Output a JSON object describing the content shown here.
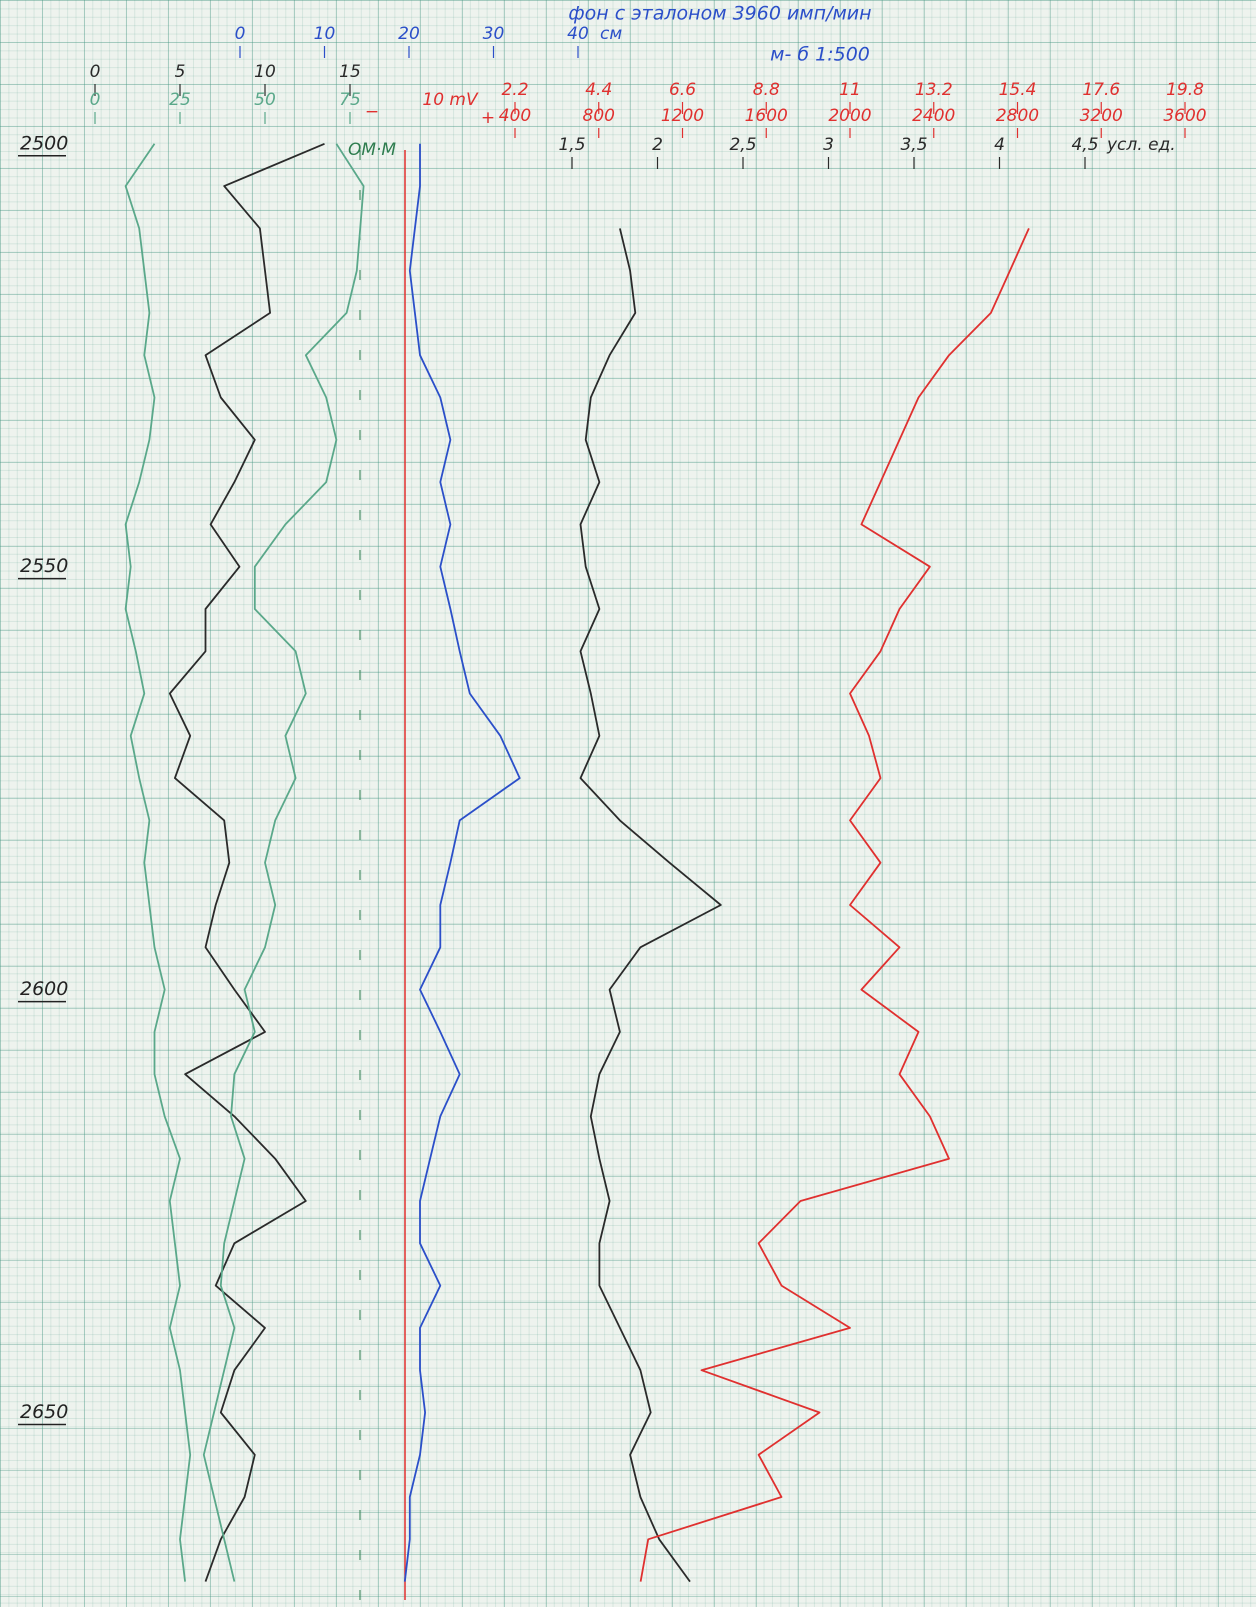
{
  "chart_data": {
    "type": "well-log",
    "title": "фон с эталоном 3960 имп/мин",
    "subtitle": "м- б 1:500",
    "annotations": [
      "10 mV",
      "−",
      "+",
      "ОМ·М"
    ],
    "depths": [
      2500,
      2505,
      2510,
      2515,
      2520,
      2525,
      2530,
      2535,
      2540,
      2545,
      2550,
      2555,
      2560,
      2565,
      2570,
      2575,
      2580,
      2585,
      2590,
      2595,
      2600,
      2605,
      2610,
      2615,
      2620,
      2625,
      2630,
      2635,
      2640,
      2645,
      2650,
      2655,
      2660,
      2665,
      2670
    ],
    "ylim": [
      2483,
      2673
    ],
    "yticks": [
      2500,
      2550,
      2600,
      2650
    ],
    "grid": true,
    "tracks": [
      {
        "xlim": [
          0,
          15
        ],
        "xticks": [
          0,
          5,
          10,
          15
        ],
        "color": "#2a2a2a",
        "series": [
          {
            "color": "#5aa88a",
            "values": [
              3.5,
              1.8,
              2.6,
              2.9,
              3.2,
              2.9,
              3.5,
              3.2,
              2.6,
              1.8,
              2.1,
              1.8,
              2.4,
              2.9,
              2.1,
              2.6,
              3.2,
              2.9,
              3.2,
              3.5,
              4.1,
              3.5,
              3.5,
              4.1,
              5.0,
              4.4,
              4.7,
              5.0,
              4.4,
              5.0,
              5.3,
              5.6,
              5.3,
              5.0,
              5.3
            ]
          },
          {
            "color": "#2a2a2a",
            "values": [
              13.5,
              7.6,
              9.7,
              10.0,
              10.3,
              6.5,
              7.4,
              9.4,
              8.2,
              6.8,
              8.5,
              6.5,
              6.5,
              4.4,
              5.6,
              4.7,
              7.6,
              7.9,
              7.1,
              6.5,
              8.2,
              10.0,
              5.3,
              8.2,
              10.6,
              12.4,
              8.2,
              7.1,
              10.0,
              8.2,
              7.4,
              9.4,
              8.8,
              7.4,
              6.5
            ]
          }
        ]
      },
      {
        "xlim": [
          0,
          75
        ],
        "xticks": [
          0,
          25,
          50,
          75
        ],
        "color": "#5aa88a",
        "series": [
          {
            "color": "#5aa88a",
            "values": [
              71,
              79,
              78,
              77,
              74,
              62,
              68,
              71,
              68,
              56,
              47,
              47,
              59,
              62,
              56,
              59,
              53,
              50,
              53,
              50,
              44,
              47,
              41,
              40,
              44,
              41,
              38,
              37,
              41,
              38,
              35,
              32,
              35,
              38,
              41
            ]
          }
        ]
      },
      {
        "xlim": [
          0,
          40
        ],
        "xticks": [
          0,
          10,
          20,
          30,
          40
        ],
        "unit": "см",
        "color": "#2b4fc9",
        "series": [
          {
            "color": "#2b4fc9",
            "values": [
              21.3,
              21.3,
              20.7,
              20.1,
              20.7,
              21.3,
              23.7,
              24.9,
              23.7,
              24.9,
              23.7,
              24.9,
              26.0,
              27.2,
              30.8,
              33.1,
              26.0,
              24.9,
              23.7,
              23.7,
              21.3,
              23.7,
              26.0,
              23.7,
              22.5,
              21.3,
              21.3,
              23.7,
              21.3,
              21.3,
              21.9,
              21.3,
              20.1,
              20.1,
              19.5
            ]
          }
        ]
      },
      {
        "xlim": [
          1.5,
          4.5
        ],
        "xticks": [
          {
            "value": 1.5,
            "label": "1,5"
          },
          2,
          {
            "value": 2.5,
            "label": "2,5"
          },
          3,
          {
            "value": 3.5,
            "label": "3,5"
          },
          4,
          {
            "value": 4.5,
            "label": "4,5"
          }
        ],
        "unit": "усл. ед.",
        "color": "#2a2a2a",
        "series": [
          {
            "color": "#2a2a2a",
            "values": [
              null,
              null,
              1.78,
              1.84,
              1.87,
              1.72,
              1.61,
              1.58,
              1.66,
              1.55,
              1.58,
              1.66,
              1.55,
              1.61,
              1.66,
              1.55,
              1.78,
              2.07,
              2.37,
              1.9,
              1.72,
              1.78,
              1.66,
              1.61,
              1.66,
              1.72,
              1.66,
              1.66,
              1.78,
              1.9,
              1.96,
              1.84,
              1.9,
              2.01,
              2.19
            ]
          }
        ]
      },
      {
        "xlim": [
          2.2,
          19.8
        ],
        "xticks": [
          2.2,
          4.4,
          6.6,
          8.8,
          11,
          13.2,
          15.4,
          17.6,
          19.8
        ],
        "x2lim": [
          400,
          3600
        ],
        "x2ticks": [
          400,
          800,
          1200,
          1600,
          2000,
          2400,
          2800,
          3200,
          3600
        ],
        "color": "#e0302f",
        "series": [
          {
            "color": "#e0302f",
            "values": [
              null,
              null,
              15.7,
              15.2,
              14.7,
              13.6,
              12.8,
              12.3,
              11.8,
              11.3,
              13.1,
              12.3,
              11.8,
              11.0,
              11.5,
              11.8,
              11.0,
              11.8,
              11.0,
              12.3,
              11.3,
              12.8,
              12.3,
              13.1,
              13.6,
              9.7,
              8.6,
              9.2,
              11.0,
              7.1,
              10.2,
              8.6,
              9.2,
              5.7,
              5.5
            ]
          }
        ]
      }
    ]
  }
}
